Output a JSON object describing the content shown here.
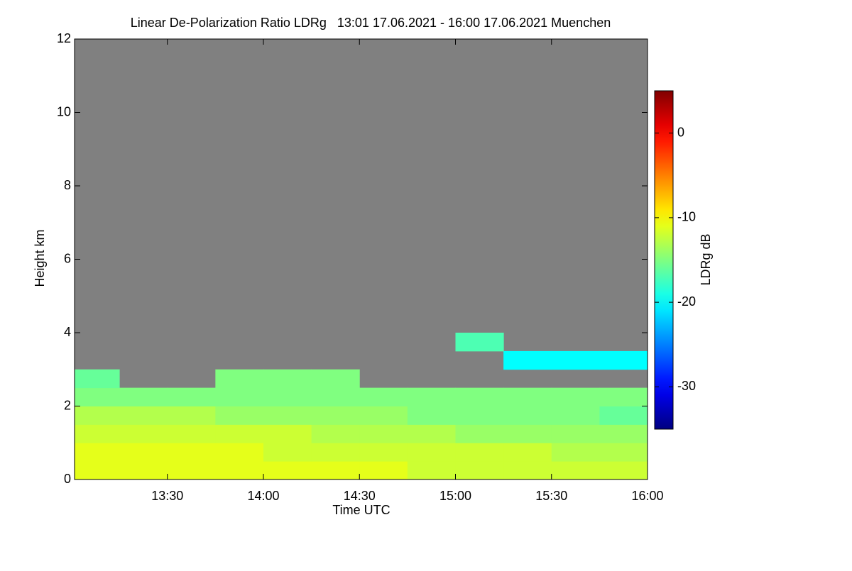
{
  "chart_data": {
    "type": "heatmap",
    "title": "Linear De-Polarization Ratio LDRg   13:01 17.06.2021 - 16:00 17.06.2021 Muenchen",
    "x_label": "Time UTC",
    "y_label": "Height km",
    "colorbar_label": "LDRg dB",
    "x_edges": [
      13.0167,
      13.25,
      13.5,
      13.75,
      14,
      14.25,
      14.5,
      14.75,
      15,
      15.25,
      15.5,
      15.75,
      16
    ],
    "y_edges": [
      0,
      0.5,
      1,
      1.5,
      2,
      2.5,
      3,
      3.5,
      4
    ],
    "z": [
      [
        -11,
        -11,
        -11,
        -11,
        -11,
        -11,
        -11,
        -12,
        -12,
        -12,
        -12,
        -12
      ],
      [
        -11,
        -11,
        -11,
        -11,
        -12,
        -12,
        -12,
        -12,
        -12,
        -12,
        -13,
        -13
      ],
      [
        -12,
        -12,
        -12,
        -12,
        -12,
        -13,
        -13,
        -13,
        -14,
        -14,
        -14,
        -14
      ],
      [
        -13,
        -13,
        -13,
        -14,
        -14,
        -14,
        -14,
        -15,
        -15,
        -15,
        -15,
        -16
      ],
      [
        -15,
        -15,
        -15,
        -15,
        -15,
        -15,
        -15,
        -15,
        -15,
        -15,
        -15,
        -15
      ],
      [
        -16,
        null,
        null,
        -15,
        -15,
        -15,
        null,
        null,
        null,
        null,
        null,
        null
      ],
      [
        null,
        null,
        null,
        null,
        null,
        null,
        null,
        null,
        null,
        -20,
        -20,
        -20
      ],
      [
        null,
        null,
        null,
        null,
        null,
        null,
        null,
        null,
        -17,
        null,
        null,
        null
      ]
    ],
    "xlim": [
      13.0167,
      16
    ],
    "xticks": [
      {
        "value": 13.5,
        "label": "13:30"
      },
      {
        "value": 14,
        "label": "14:00"
      },
      {
        "value": 14.5,
        "label": "14:30"
      },
      {
        "value": 15,
        "label": "15:00"
      },
      {
        "value": 15.5,
        "label": "15:30"
      },
      {
        "value": 16,
        "label": "16:00"
      }
    ],
    "ylim": [
      0,
      12
    ],
    "yticks": [
      0,
      2,
      4,
      6,
      8,
      10,
      12
    ],
    "zlim": [
      -35,
      5
    ],
    "zticks": [
      0,
      -10,
      -20,
      -30
    ],
    "colormap": "jet",
    "no_data_color": "#808080"
  }
}
